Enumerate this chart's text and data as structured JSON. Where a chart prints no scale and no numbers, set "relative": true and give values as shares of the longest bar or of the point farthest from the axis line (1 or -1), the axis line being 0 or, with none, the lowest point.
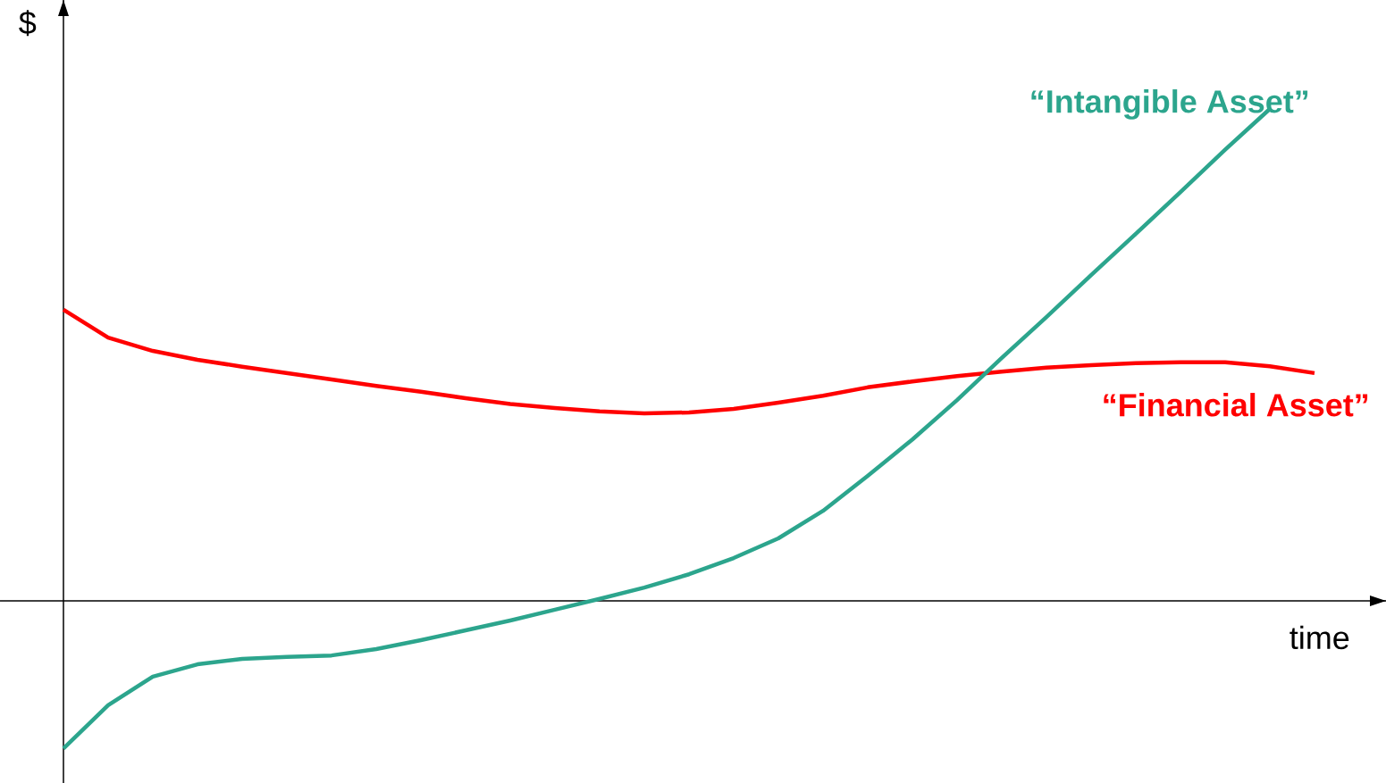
{
  "chart_data": {
    "type": "line",
    "relative": true,
    "xlabel": "time",
    "ylabel": "$",
    "categories": [
      null,
      null,
      null,
      null,
      null,
      null,
      null,
      null,
      null,
      null,
      null,
      null,
      null,
      null,
      null,
      null,
      null,
      null,
      null,
      null,
      null,
      null,
      null,
      null,
      null,
      null,
      null,
      null,
      null
    ],
    "series": [
      {
        "name": "“Financial Asset”",
        "color": "#ff0000",
        "values": [
          0.592,
          0.535,
          0.508,
          0.49,
          0.476,
          0.463,
          0.45,
          0.437,
          0.425,
          0.412,
          0.4,
          0.392,
          0.385,
          0.381,
          0.383,
          0.39,
          0.403,
          0.417,
          0.434,
          0.446,
          0.457,
          0.466,
          0.474,
          0.479,
          0.483,
          0.485,
          0.485,
          0.477,
          0.463
        ]
      },
      {
        "name": "“Intangible Asset”",
        "color": "#2ca58d",
        "values": [
          -0.3,
          -0.212,
          -0.154,
          -0.129,
          -0.118,
          -0.114,
          -0.111,
          -0.098,
          -0.08,
          -0.06,
          -0.04,
          -0.018,
          0.004,
          0.027,
          0.054,
          0.087,
          0.127,
          0.183,
          0.254,
          0.328,
          0.408,
          0.494,
          0.577,
          0.662,
          0.746,
          0.831,
          0.917,
          1.0,
          null
        ]
      }
    ],
    "marker": "none",
    "line_style": "solid"
  }
}
